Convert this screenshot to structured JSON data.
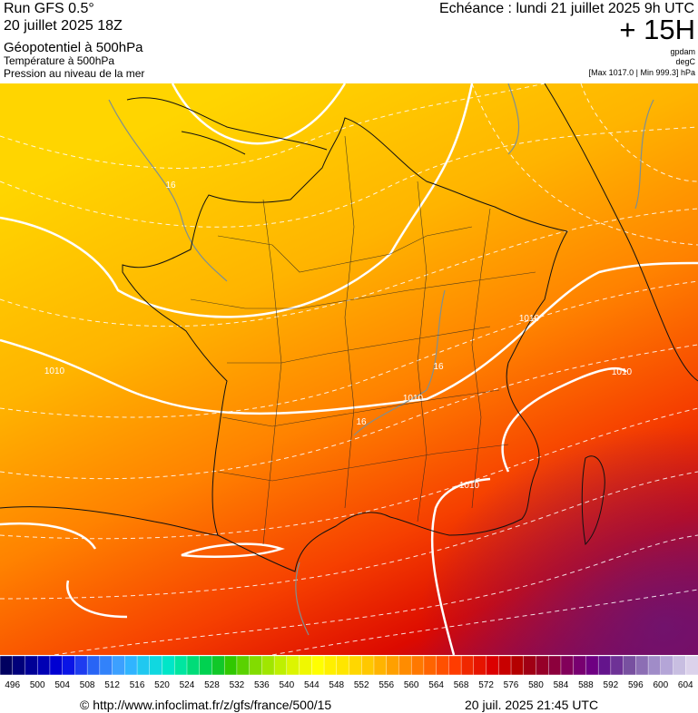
{
  "header": {
    "run": "Run GFS 0.5°",
    "date": "20 juillet 2025 18Z",
    "field1": "Géopotentiel à 500hPa",
    "field2": "Température à 500hPa",
    "field3": "Pression au niveau de la mer",
    "forecast": "Echéance : lundi 21 juillet 2025 9h UTC",
    "lead": "+ 15H",
    "unit1": "gpdam",
    "unit2": "degC",
    "unit3": "[Max 1017.0 | Min 999.3] hPa"
  },
  "map_labels": [
    "16",
    "1010",
    "1010",
    "16",
    "1010",
    "16",
    "1010",
    "1010"
  ],
  "colorbar": {
    "labels": [
      496,
      500,
      504,
      508,
      512,
      516,
      520,
      524,
      528,
      532,
      536,
      540,
      544,
      548,
      552,
      556,
      560,
      564,
      568,
      572,
      576,
      580,
      584,
      588,
      592,
      596,
      600,
      604
    ],
    "colors": [
      "#000060",
      "#00007a",
      "#000096",
      "#0000b4",
      "#0000d2",
      "#0a14e6",
      "#1e3cf0",
      "#2864f5",
      "#3282fa",
      "#3ca0ff",
      "#30b4ff",
      "#20c8f0",
      "#10d8e0",
      "#00e6c8",
      "#00e6a0",
      "#00dc78",
      "#00d250",
      "#10c828",
      "#30c800",
      "#5ad200",
      "#82dc00",
      "#a0e600",
      "#bef000",
      "#dcf500",
      "#f0f800",
      "#ffff00",
      "#fff000",
      "#ffe600",
      "#ffd700",
      "#ffc800",
      "#ffb400",
      "#ffa000",
      "#ff8c00",
      "#ff7800",
      "#ff6400",
      "#ff5000",
      "#ff3c00",
      "#f02800",
      "#e61400",
      "#dc0000",
      "#c80000",
      "#b40000",
      "#a00014",
      "#960028",
      "#8c003c",
      "#82005a",
      "#780070",
      "#6e0082",
      "#64148c",
      "#6e3296",
      "#7850a0",
      "#8c6eb4",
      "#a08cc8",
      "#b4a5d7",
      "#c8bee1",
      "#dcd2eb"
    ]
  },
  "footer": {
    "url": "© http://www.infoclimat.fr/z/gfs/france/500/15",
    "timestamp": "20 juil. 2025 21:45 UTC"
  }
}
